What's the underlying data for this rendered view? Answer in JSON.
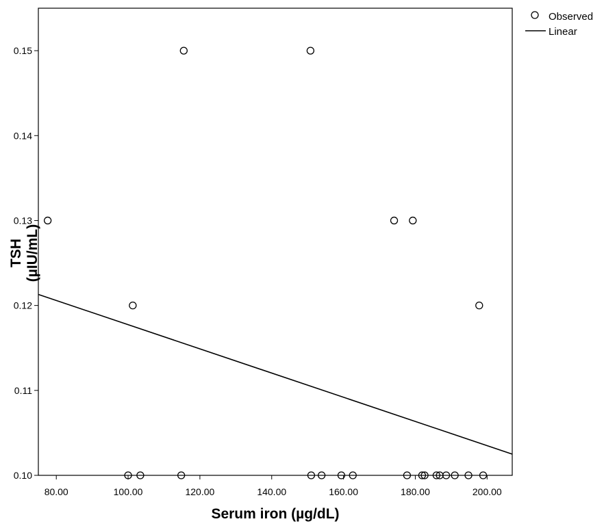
{
  "chart_data": {
    "type": "scatter",
    "xlabel": "Serum iron (µg/dL)",
    "ylabel_line1": "TSH",
    "ylabel_line2": "(µIU/mL)",
    "xlim": [
      75,
      207
    ],
    "ylim": [
      0.1,
      0.155
    ],
    "x_ticks": [
      80,
      100,
      120,
      140,
      160,
      180,
      200
    ],
    "x_tick_labels": [
      "80.00",
      "100.00",
      "120.00",
      "140.00",
      "160.00",
      "180.00",
      "200.00"
    ],
    "y_ticks": [
      0.1,
      0.11,
      0.12,
      0.13,
      0.14,
      0.15
    ],
    "y_tick_labels": [
      "0.10",
      "0.11",
      "0.12",
      "0.13",
      "0.14",
      "0.15"
    ],
    "grid": false,
    "legend_position": "top-right",
    "legend": {
      "observed": "Observed",
      "linear": "Linear"
    },
    "series": [
      {
        "name": "Observed",
        "kind": "points",
        "points": [
          {
            "x": 115.5,
            "y": 0.15
          },
          {
            "x": 150.8,
            "y": 0.15
          },
          {
            "x": 77.6,
            "y": 0.13
          },
          {
            "x": 174.1,
            "y": 0.13
          },
          {
            "x": 179.3,
            "y": 0.13
          },
          {
            "x": 101.3,
            "y": 0.12
          },
          {
            "x": 197.8,
            "y": 0.12
          },
          {
            "x": 100.0,
            "y": 0.1
          },
          {
            "x": 103.4,
            "y": 0.1
          },
          {
            "x": 114.8,
            "y": 0.1
          },
          {
            "x": 151.0,
            "y": 0.1
          },
          {
            "x": 153.9,
            "y": 0.1
          },
          {
            "x": 159.4,
            "y": 0.1
          },
          {
            "x": 162.6,
            "y": 0.1
          },
          {
            "x": 177.7,
            "y": 0.1
          },
          {
            "x": 181.9,
            "y": 0.1
          },
          {
            "x": 182.6,
            "y": 0.1
          },
          {
            "x": 185.9,
            "y": 0.1
          },
          {
            "x": 186.8,
            "y": 0.1
          },
          {
            "x": 188.6,
            "y": 0.1
          },
          {
            "x": 191.0,
            "y": 0.1
          },
          {
            "x": 194.8,
            "y": 0.1
          },
          {
            "x": 198.9,
            "y": 0.1
          }
        ]
      },
      {
        "name": "Linear",
        "kind": "fit-line",
        "start": {
          "x": 75,
          "y": 0.1213
        },
        "end": {
          "x": 207,
          "y": 0.1025
        }
      }
    ]
  }
}
